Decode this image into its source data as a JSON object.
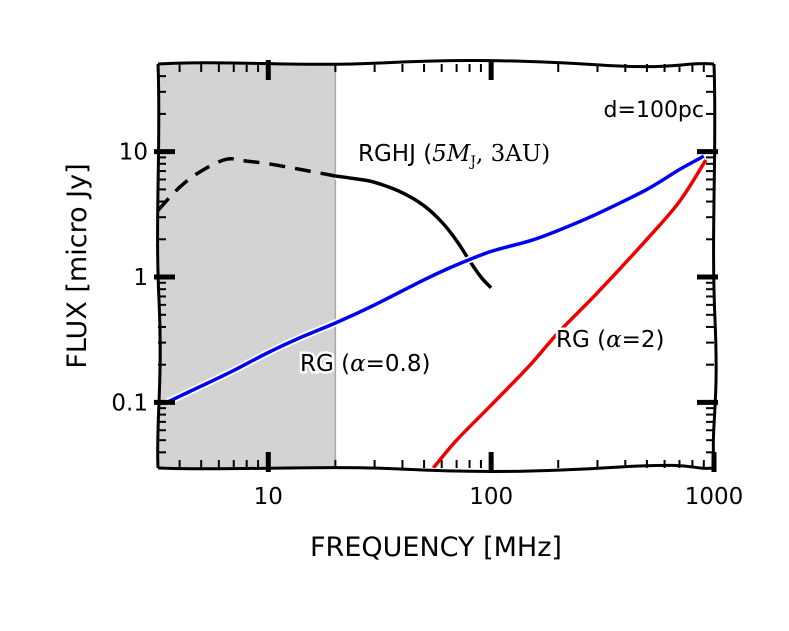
{
  "chart_data": {
    "type": "line",
    "title": "",
    "xlabel": "FREQUENCY [MHz]",
    "ylabel": "FLUX [micro Jy]",
    "xscale": "log",
    "yscale": "log",
    "xlim": [
      3.2,
      1000
    ],
    "ylim": [
      0.03,
      50
    ],
    "x_ticks": [
      {
        "value": 10,
        "label": "10"
      },
      {
        "value": 100,
        "label": "100"
      },
      {
        "value": 1000,
        "label": "1000"
      }
    ],
    "y_ticks": [
      {
        "value": 0.1,
        "label": "0.1"
      },
      {
        "value": 1,
        "label": "1"
      },
      {
        "value": 10,
        "label": "10"
      }
    ],
    "shaded_region": {
      "x_from": 3.2,
      "x_to": 20,
      "color": "#d3d3d3"
    },
    "annotation_distance": "d=100pc",
    "series": [
      {
        "name": "RGHJ",
        "label_text": "RGHJ (",
        "label_math": "5M",
        "label_sub": "J",
        "label_tail": ", 3AU)",
        "color": "#000000",
        "style": "dashed-then-solid",
        "dash_until_x": 20,
        "x": [
          3.2,
          4,
          5,
          6.5,
          8,
          10,
          14,
          20,
          25,
          30,
          40,
          50,
          60,
          70,
          80,
          90,
          100
        ],
        "y": [
          3.4,
          5.2,
          7.0,
          8.7,
          8.4,
          8.0,
          7.2,
          6.4,
          6.05,
          5.7,
          4.7,
          3.7,
          2.75,
          1.95,
          1.35,
          1.0,
          0.82
        ]
      },
      {
        "name": "RG (α=0.8)",
        "label_text": "RG (",
        "label_greek": "α",
        "label_tail": "=0.8)",
        "color": "#0000ee",
        "style": "solid",
        "x": [
          3.5,
          5,
          7,
          10,
          14,
          20,
          30,
          50,
          70,
          100,
          150,
          200,
          300,
          500,
          700,
          900
        ],
        "y": [
          0.1,
          0.135,
          0.18,
          0.25,
          0.33,
          0.43,
          0.6,
          0.95,
          1.25,
          1.6,
          1.95,
          2.35,
          3.2,
          5.0,
          7.2,
          9.2
        ]
      },
      {
        "name": "RG (α=2)",
        "label_text": "RG (",
        "label_greek": "α",
        "label_tail": "=2)",
        "color": "#ee0000",
        "style": "solid",
        "x": [
          55,
          70,
          100,
          150,
          200,
          300,
          500,
          700,
          920
        ],
        "y": [
          0.03,
          0.05,
          0.095,
          0.2,
          0.36,
          0.75,
          2.0,
          4.0,
          8.6
        ]
      }
    ]
  }
}
